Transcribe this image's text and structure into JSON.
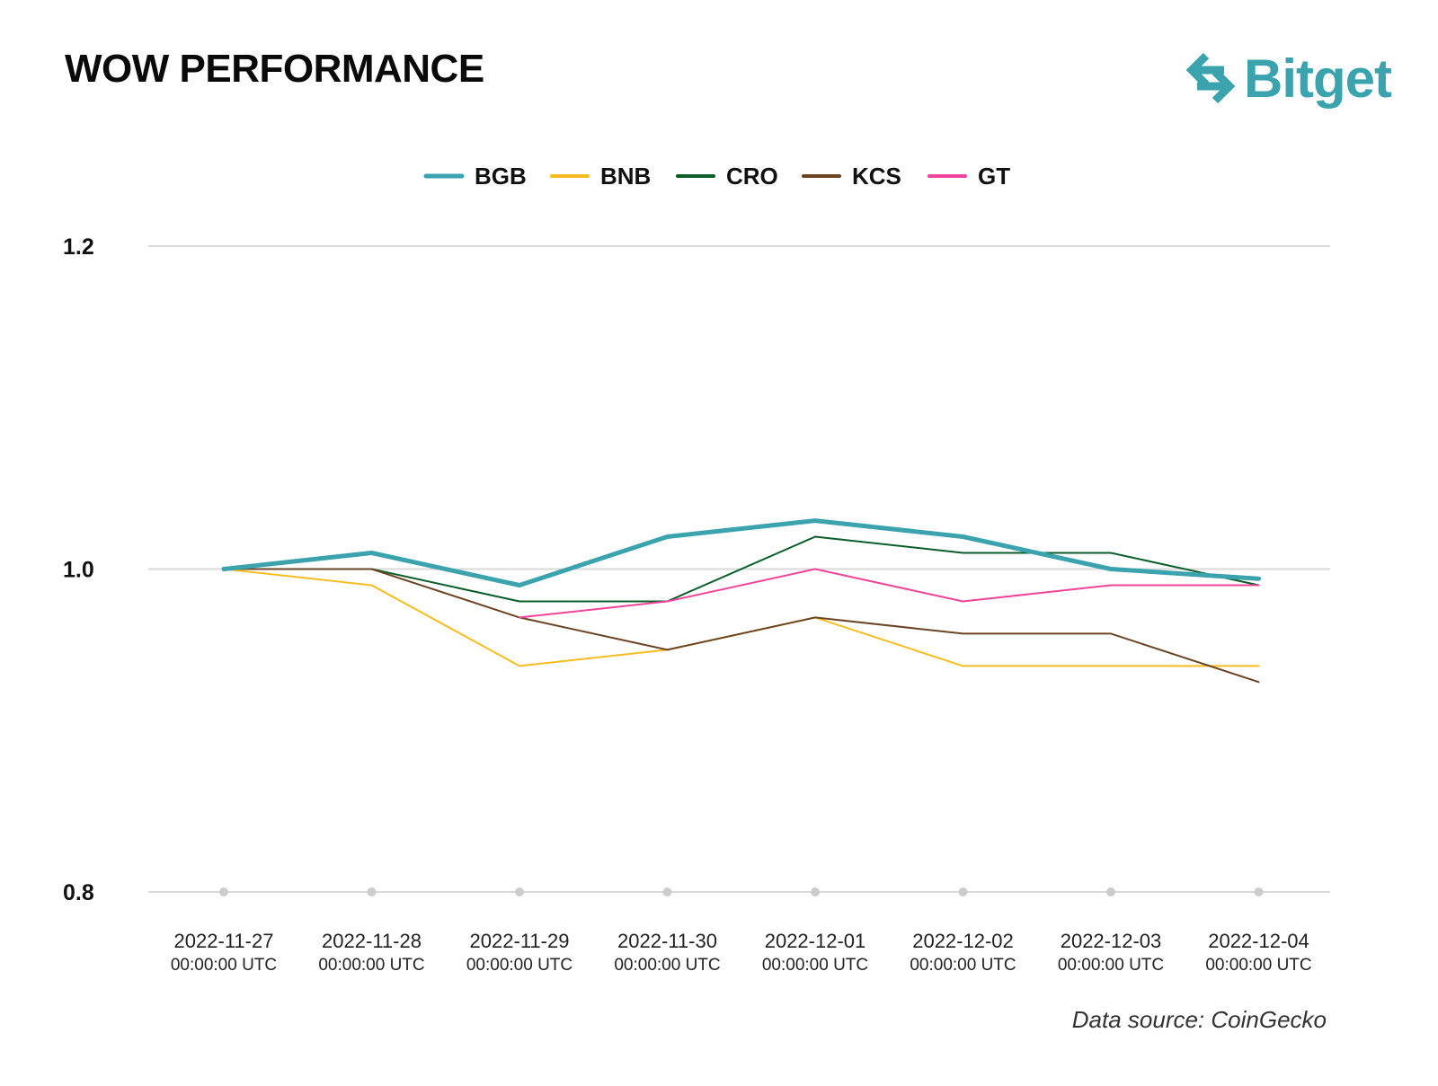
{
  "header": {
    "title": "WOW PERFORMANCE"
  },
  "logo": {
    "text": "Bitget",
    "icon": "bitget-arrows-icon",
    "color": "#3aa3ad"
  },
  "footer": {
    "source": "Data source: CoinGecko"
  },
  "chart_data": {
    "type": "line",
    "title": "WOW PERFORMANCE",
    "xlabel": "",
    "ylabel": "",
    "ylim": [
      0.8,
      1.2
    ],
    "yticks": [
      "1.2",
      "1.0",
      "0.8"
    ],
    "grid": true,
    "legend_position": "top-center",
    "categories": [
      {
        "date": "2022-11-27",
        "time": "00:00:00 UTC"
      },
      {
        "date": "2022-11-28",
        "time": "00:00:00 UTC"
      },
      {
        "date": "2022-11-29",
        "time": "00:00:00 UTC"
      },
      {
        "date": "2022-11-30",
        "time": "00:00:00 UTC"
      },
      {
        "date": "2022-12-01",
        "time": "00:00:00 UTC"
      },
      {
        "date": "2022-12-02",
        "time": "00:00:00 UTC"
      },
      {
        "date": "2022-12-03",
        "time": "00:00:00 UTC"
      },
      {
        "date": "2022-12-04",
        "time": "00:00:00 UTC"
      }
    ],
    "series": [
      {
        "name": "BGB",
        "color": "#3aa3ad",
        "values": [
          1.0,
          1.01,
          0.99,
          1.02,
          1.03,
          1.02,
          1.0,
          0.994
        ]
      },
      {
        "name": "BNB",
        "color": "#f5bd1f",
        "values": [
          1.0,
          0.99,
          0.94,
          0.95,
          0.97,
          0.94,
          0.94,
          0.94
        ]
      },
      {
        "name": "CRO",
        "color": "#0b5e2c",
        "values": [
          1.0,
          1.0,
          0.98,
          0.98,
          1.02,
          1.01,
          1.01,
          0.99
        ]
      },
      {
        "name": "KCS",
        "color": "#6b4423",
        "values": [
          1.0,
          1.0,
          0.97,
          0.95,
          0.97,
          0.96,
          0.96,
          0.93
        ]
      },
      {
        "name": "GT",
        "color": "#f0449a",
        "values": [
          null,
          null,
          0.97,
          0.98,
          1.0,
          0.98,
          0.99,
          0.99
        ]
      }
    ]
  }
}
